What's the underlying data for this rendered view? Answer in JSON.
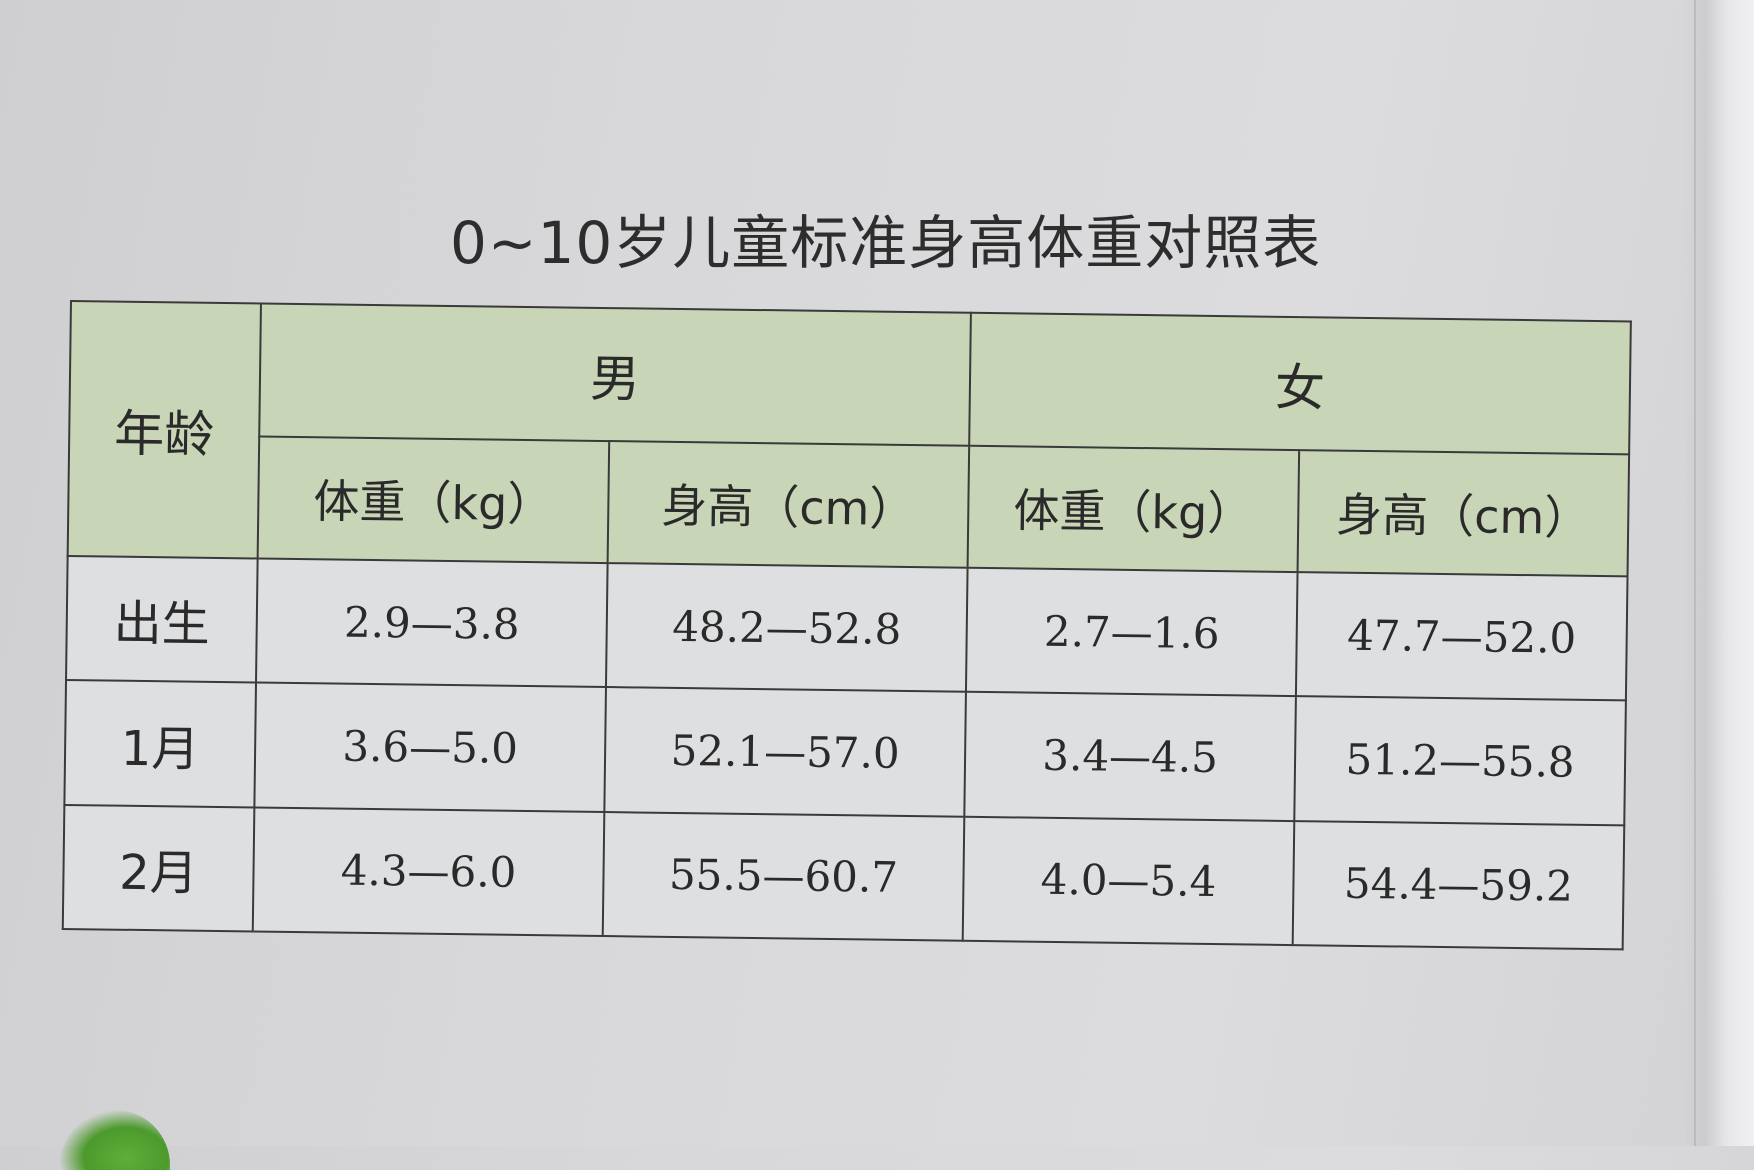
{
  "title": "0~10岁儿童标准身高体重对照表",
  "table": {
    "corner_label": "年龄",
    "groups": [
      "男",
      "女"
    ],
    "subheaders": [
      "体重（kg）",
      "身高（cm）",
      "体重（kg）",
      "身高（cm）"
    ],
    "rows": [
      {
        "age": "出生",
        "cells": [
          "2.9—3.8",
          "48.2—52.8",
          "2.7—1.6",
          "47.7—52.0"
        ]
      },
      {
        "age": "1月",
        "cells": [
          "3.6—5.0",
          "52.1—57.0",
          "3.4—4.5",
          "51.2—55.8"
        ]
      },
      {
        "age": "2月",
        "cells": [
          "4.3—6.0",
          "55.5—60.7",
          "4.0—5.4",
          "54.4—59.2"
        ]
      }
    ]
  },
  "colors": {
    "header_green": "#c8d5b6",
    "paper": "#dedfe1",
    "border": "#3a3a3a"
  }
}
